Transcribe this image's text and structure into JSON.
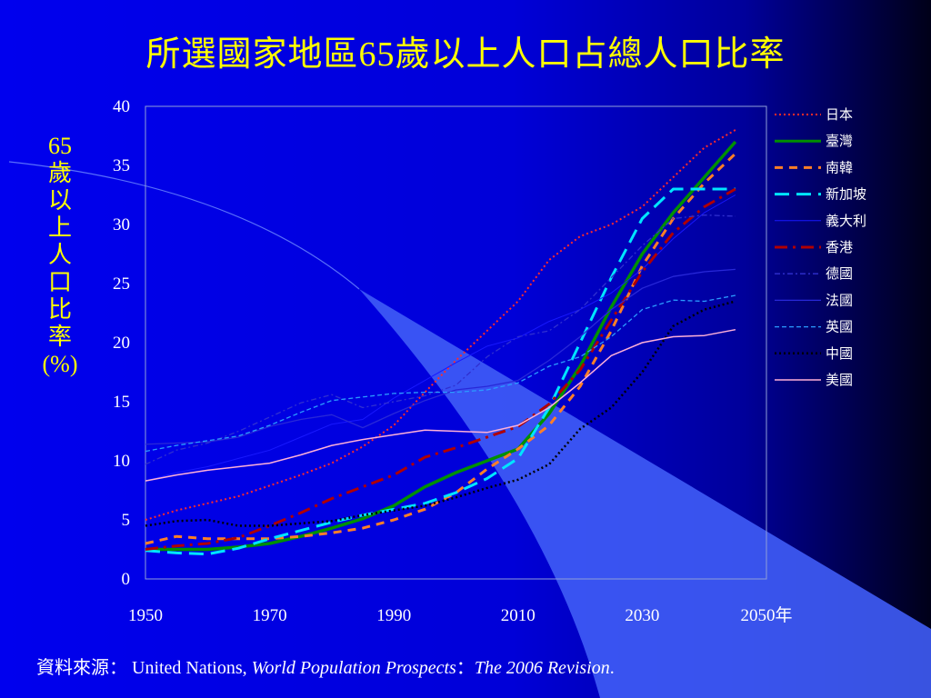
{
  "title": "所選國家地區65歲以上人口占總人口比率",
  "source": {
    "label": "資料來源：",
    "publisher": "United Nations, ",
    "publication": "World Population Prospects",
    "separator": "：",
    "revision": "The 2006 Revision",
    "end": "."
  },
  "chart_data": {
    "type": "line",
    "title": "所選國家地區65歲以上人口占總人口比率",
    "ylabel_chars": [
      "65",
      "歲",
      "以",
      "上",
      "人",
      "口",
      "比",
      "率",
      "(%)"
    ],
    "x_ticks": [
      "1950",
      "1970",
      "1990",
      "2010",
      "2030",
      "2050年"
    ],
    "xlim": [
      1950,
      2050
    ],
    "ylim": [
      0,
      40
    ],
    "y_ticks": [
      "0",
      "5",
      "10",
      "15",
      "20",
      "25",
      "30",
      "35",
      "40"
    ],
    "grid": false,
    "legend_position": "right",
    "series": [
      {
        "name": "日本",
        "color": "#ff2a2a",
        "dash": "2,3",
        "width": 2,
        "x": [
          1950,
          1955,
          1960,
          1965,
          1970,
          1975,
          1980,
          1985,
          1990,
          1995,
          2000,
          2005,
          2010,
          2015,
          2020,
          2025,
          2030,
          2035,
          2040,
          2045
        ],
        "y": [
          5.0,
          5.8,
          6.4,
          7.0,
          7.9,
          8.8,
          9.8,
          11.2,
          13.0,
          15.8,
          18.5,
          21.0,
          23.5,
          27.0,
          29.0,
          30.0,
          31.5,
          34.0,
          36.5,
          38.0
        ]
      },
      {
        "name": "臺灣",
        "color": "#009000",
        "dash": "",
        "width": 3.5,
        "x": [
          1950,
          1955,
          1960,
          1965,
          1970,
          1975,
          1980,
          1985,
          1990,
          1995,
          2000,
          2005,
          2010,
          2015,
          2020,
          2025,
          2030,
          2035,
          2040,
          2045
        ],
        "y": [
          2.5,
          2.5,
          2.5,
          2.7,
          3.0,
          3.6,
          4.3,
          5.1,
          6.2,
          7.8,
          9.0,
          10.0,
          11.0,
          14.0,
          18.0,
          23.0,
          27.5,
          31.0,
          34.0,
          37.0
        ]
      },
      {
        "name": "南韓",
        "color": "#ff7f27",
        "dash": "9,7",
        "width": 3,
        "x": [
          1950,
          1955,
          1960,
          1965,
          1970,
          1975,
          1980,
          1985,
          1990,
          1995,
          2000,
          2005,
          2010,
          2015,
          2020,
          2025,
          2030,
          2035,
          2040,
          2045
        ],
        "y": [
          3.0,
          3.6,
          3.4,
          3.4,
          3.4,
          3.6,
          3.9,
          4.3,
          5.0,
          5.9,
          7.3,
          9.3,
          11.0,
          13.0,
          16.3,
          21.0,
          26.5,
          30.5,
          33.5,
          36.0
        ]
      },
      {
        "name": "新加坡",
        "color": "#00e5ff",
        "dash": "16,8",
        "width": 3,
        "x": [
          1950,
          1955,
          1960,
          1965,
          1970,
          1975,
          1980,
          1985,
          1990,
          1995,
          2000,
          2005,
          2010,
          2015,
          2020,
          2025,
          2030,
          2035,
          2040,
          2045
        ],
        "y": [
          2.4,
          2.2,
          2.1,
          2.6,
          3.4,
          4.1,
          4.8,
          5.4,
          5.9,
          6.4,
          7.3,
          8.5,
          10.2,
          14.5,
          20.0,
          25.5,
          30.5,
          33.0,
          33.0,
          33.0
        ]
      },
      {
        "name": "義大利",
        "color": "#1818ff",
        "dash": "",
        "width": 1,
        "x": [
          1950,
          1955,
          1960,
          1965,
          1970,
          1975,
          1980,
          1985,
          1990,
          1995,
          2000,
          2005,
          2010,
          2015,
          2020,
          2025,
          2030,
          2035,
          2040,
          2045
        ],
        "y": [
          8.3,
          9.0,
          9.5,
          10.2,
          10.9,
          12.0,
          13.1,
          13.5,
          15.3,
          16.8,
          18.3,
          19.7,
          20.4,
          21.8,
          22.8,
          24.2,
          26.2,
          28.8,
          31.0,
          32.5
        ]
      },
      {
        "name": "香港",
        "color": "#b00000",
        "dash": "14,6,3,6",
        "width": 3,
        "x": [
          1950,
          1955,
          1960,
          1965,
          1970,
          1975,
          1980,
          1985,
          1990,
          1995,
          2000,
          2005,
          2010,
          2015,
          2020,
          2025,
          2030,
          2035,
          2040,
          2045
        ],
        "y": [
          2.5,
          2.8,
          3.0,
          3.5,
          4.5,
          5.6,
          6.8,
          7.8,
          8.8,
          10.3,
          11.1,
          12.0,
          12.9,
          14.8,
          17.7,
          21.9,
          26.0,
          29.3,
          31.5,
          33.0
        ]
      },
      {
        "name": "德國",
        "color": "#3030d0",
        "dash": "6,3,2,3",
        "width": 1.3,
        "x": [
          1950,
          1955,
          1960,
          1965,
          1970,
          1975,
          1980,
          1985,
          1990,
          1995,
          2000,
          2005,
          2010,
          2015,
          2020,
          2025,
          2030,
          2035,
          2040,
          2045
        ],
        "y": [
          9.7,
          10.9,
          11.5,
          12.5,
          13.7,
          14.9,
          15.6,
          14.5,
          15.0,
          15.5,
          16.4,
          18.8,
          20.5,
          21.0,
          22.8,
          25.5,
          28.2,
          30.5,
          30.8,
          30.7
        ]
      },
      {
        "name": "法國",
        "color": "#2828d8",
        "dash": "",
        "width": 1.3,
        "x": [
          1950,
          1955,
          1960,
          1965,
          1970,
          1975,
          1980,
          1985,
          1990,
          1995,
          2000,
          2005,
          2010,
          2015,
          2020,
          2025,
          2030,
          2035,
          2040,
          2045
        ],
        "y": [
          11.4,
          11.5,
          11.6,
          12.0,
          12.9,
          13.5,
          13.9,
          12.8,
          14.0,
          15.1,
          16.0,
          16.3,
          16.8,
          18.5,
          20.5,
          22.8,
          24.6,
          25.6,
          26.0,
          26.2
        ]
      },
      {
        "name": "英國",
        "color": "#2b9bff",
        "dash": "5,3",
        "width": 1.3,
        "x": [
          1950,
          1955,
          1960,
          1965,
          1970,
          1975,
          1980,
          1985,
          1990,
          1995,
          2000,
          2005,
          2010,
          2015,
          2020,
          2025,
          2030,
          2035,
          2040,
          2045
        ],
        "y": [
          10.8,
          11.3,
          11.7,
          12.1,
          13.0,
          14.1,
          15.1,
          15.4,
          15.7,
          15.8,
          15.8,
          16.0,
          16.6,
          18.0,
          18.8,
          20.5,
          22.8,
          23.6,
          23.5,
          24.0
        ]
      },
      {
        "name": "中國",
        "color": "#000000",
        "dash": "2,3",
        "width": 2.5,
        "x": [
          1950,
          1955,
          1960,
          1965,
          1970,
          1975,
          1980,
          1985,
          1990,
          1995,
          2000,
          2005,
          2010,
          2015,
          2020,
          2025,
          2030,
          2035,
          2040,
          2045
        ],
        "y": [
          4.5,
          4.9,
          5.0,
          4.5,
          4.5,
          4.7,
          4.9,
          5.4,
          5.8,
          6.2,
          6.9,
          7.7,
          8.4,
          9.7,
          12.7,
          14.5,
          17.5,
          21.4,
          22.8,
          23.5
        ]
      },
      {
        "name": "美國",
        "color": "#ffb0d8",
        "dash": "",
        "width": 1.5,
        "x": [
          1950,
          1955,
          1960,
          1965,
          1970,
          1975,
          1980,
          1985,
          1990,
          1995,
          2000,
          2005,
          2010,
          2015,
          2020,
          2025,
          2030,
          2035,
          2040,
          2045
        ],
        "y": [
          8.3,
          8.8,
          9.2,
          9.5,
          9.8,
          10.5,
          11.3,
          11.8,
          12.2,
          12.6,
          12.5,
          12.4,
          13.0,
          14.5,
          16.6,
          18.9,
          20.0,
          20.5,
          20.6,
          21.1
        ]
      }
    ]
  }
}
